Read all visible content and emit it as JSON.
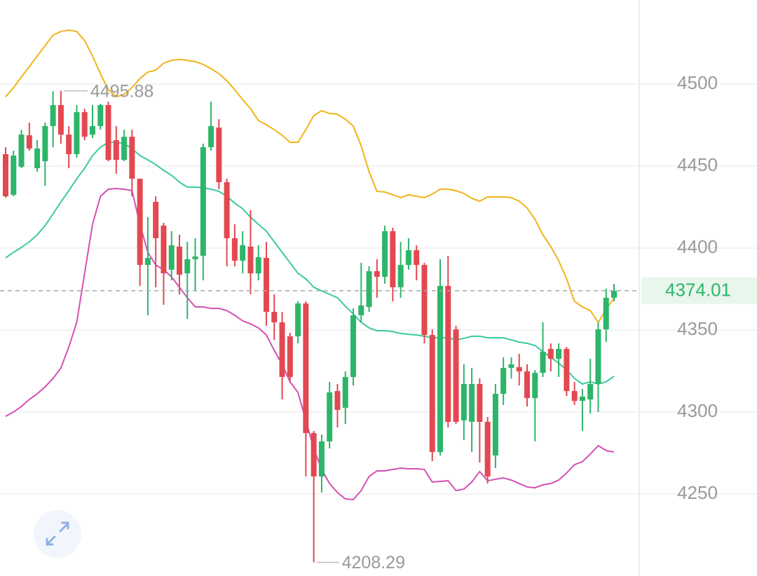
{
  "chart_data": {
    "type": "candlestick",
    "open": [
      4457.3,
      4432.5,
      4449.6,
      4468.8,
      4448.7,
      4453.0,
      4474.4,
      4487.2,
      4469.2,
      4457.3,
      4482.9,
      4469.2,
      4474.4,
      4487.2,
      4465.8,
      4453.8,
      4467.9,
      4442.3,
      4389.7,
      4428.2,
      4413.7,
      4386.8,
      4400.9,
      4384.6,
      4393.2,
      4395.3,
      4461.5,
      4473.5,
      4440.2,
      4406.0,
      4392.3,
      4400.9,
      4384.6,
      4394.0,
      4361.1,
      4354.7,
      4346.2,
      4346.2,
      4366.2,
      4287.2,
      4260.7,
      4282.1,
      4312.8,
      4302.6,
      4321.4,
      4359.0,
      4364.1,
      4385.9,
      4382.5,
      4410.3,
      4376.1,
      4389.7,
      4398.7,
      4389.7,
      4347.0,
      4275.6,
      4376.9,
      4350.4,
      4294.9,
      4294.0,
      4317.1,
      4294.0,
      4273.5,
      4311.1,
      4326.9,
      4327.4,
      4324.8,
      4308.5,
      4323.9,
      4338.5,
      4332.5,
      4338.5,
      4312.8,
      4306.8,
      4307.7,
      4317.1,
      4350.4,
      4369.7
    ],
    "high": [
      4461.5,
      4459.4,
      4472.2,
      4476.5,
      4465.8,
      4476.5,
      4495.7,
      4495.88,
      4474.4,
      4487.2,
      4485.0,
      4487.2,
      4488.0,
      4489.3,
      4474.4,
      4472.2,
      4472.2,
      4442.3,
      4418.8,
      4431.6,
      4415.4,
      4410.3,
      4408.1,
      4403.8,
      4406.0,
      4463.7,
      4489.3,
      4478.6,
      4442.3,
      4414.5,
      4410.3,
      4423.1,
      4401.7,
      4403.8,
      4371.8,
      4361.1,
      4348.3,
      4367.5,
      4367.5,
      4288.5,
      4286.3,
      4318.4,
      4317.1,
      4324.8,
      4363.2,
      4391.0,
      4388.9,
      4393.2,
      4413.7,
      4412.4,
      4403.8,
      4406.0,
      4401.7,
      4391.0,
      4350.4,
      4393.2,
      4395.3,
      4352.6,
      4329.1,
      4326.9,
      4320.5,
      4297.0,
      4317.1,
      4333.3,
      4333.3,
      4335.5,
      4329.1,
      4325.6,
      4354.7,
      4341.9,
      4341.9,
      4339.7,
      4318.4,
      4314.1,
      4332.5,
      4354.7,
      4375.2,
      4378.2
    ],
    "low": [
      4430.8,
      4431.6,
      4448.7,
      4459.4,
      4446.6,
      4438.0,
      4461.5,
      4463.7,
      4448.7,
      4455.1,
      4465.8,
      4467.1,
      4472.2,
      4453.0,
      4445.3,
      4453.0,
      4431.6,
      4376.9,
      4359.0,
      4376.1,
      4365.4,
      4380.3,
      4371.8,
      4356.8,
      4373.9,
      4380.3,
      4459.4,
      4435.9,
      4388.9,
      4388.9,
      4384.6,
      4371.8,
      4380.3,
      4352.6,
      4344.0,
      4307.7,
      4318.4,
      4341.9,
      4260.7,
      4208.29,
      4250.9,
      4277.8,
      4290.6,
      4292.7,
      4316.2,
      4354.7,
      4361.1,
      4369.7,
      4378.2,
      4367.5,
      4369.7,
      4386.8,
      4380.3,
      4341.9,
      4270.1,
      4273.5,
      4290.6,
      4292.7,
      4282.9,
      4275.6,
      4269.2,
      4256.4,
      4265.8,
      4304.3,
      4320.5,
      4316.2,
      4303.4,
      4282.1,
      4321.4,
      4324.8,
      4321.4,
      4309.8,
      4304.3,
      4288.5,
      4299.1,
      4300.0,
      4342.7,
      4367.5
    ],
    "close": [
      4431.6,
      4456.4,
      4469.2,
      4460.7,
      4460.7,
      4474.4,
      4487.2,
      4469.2,
      4457.3,
      4482.9,
      4467.9,
      4474.4,
      4487.2,
      4453.8,
      4453.8,
      4467.9,
      4442.3,
      4389.7,
      4394.0,
      4406.0,
      4384.6,
      4401.7,
      4383.8,
      4393.2,
      4394.9,
      4461.5,
      4474.4,
      4440.2,
      4406.0,
      4392.3,
      4401.7,
      4384.6,
      4394.4,
      4361.1,
      4354.7,
      4321.4,
      4321.4,
      4366.2,
      4287.2,
      4260.7,
      4282.1,
      4312.0,
      4301.3,
      4321.4,
      4359.0,
      4365.0,
      4385.9,
      4382.5,
      4410.3,
      4376.1,
      4389.7,
      4398.7,
      4389.7,
      4347.0,
      4275.6,
      4376.9,
      4294.0,
      4294.0,
      4317.1,
      4317.1,
      4294.0,
      4260.7,
      4311.1,
      4326.9,
      4329.1,
      4324.8,
      4308.5,
      4323.9,
      4336.8,
      4332.5,
      4338.5,
      4312.8,
      4306.8,
      4309.4,
      4317.1,
      4350.4,
      4369.7,
      4374.01
    ],
    "up_color": "#2db56a",
    "down_color": "#e34850",
    "bands": [
      {
        "color": "#f0b419",
        "values": [
          4492.3,
          4497.9,
          4504.3,
          4510.7,
          4517.1,
          4523.5,
          4529.9,
          4532.1,
          4532.9,
          4532.1,
          4526.5,
          4517.1,
          4506.4,
          4496.6,
          4492.3,
          4493.6,
          4497.9,
          4503.4,
          4507.3,
          4508.5,
          4512.8,
          4514.5,
          4515.0,
          4514.5,
          4513.7,
          4512.0,
          4509.4,
          4506.4,
          4502.1,
          4496.6,
          4490.6,
          4485.0,
          4477.8,
          4475.2,
          4472.2,
          4468.8,
          4464.5,
          4464.5,
          4472.2,
          4480.8,
          4483.8,
          4482.1,
          4481.6,
          4478.6,
          4474.4,
          4462.4,
          4446.6,
          4434.6,
          4434.2,
          4432.5,
          4430.8,
          4432.5,
          4431.6,
          4430.8,
          4432.9,
          4435.9,
          4435.9,
          4435.0,
          4433.3,
          4430.3,
          4428.6,
          4431.2,
          4431.2,
          4431.2,
          4430.8,
          4428.6,
          4424.4,
          4417.5,
          4408.1,
          4400.9,
          4392.3,
          4381.2,
          4367.5,
          4364.1,
          4361.9,
          4354.7,
          4362.4,
          4369.7
        ]
      },
      {
        "color": "#3cc9a0",
        "values": [
          4394.0,
          4397.4,
          4400.4,
          4403.8,
          4408.1,
          4413.7,
          4420.9,
          4428.2,
          4435.0,
          4442.3,
          4448.7,
          4456.4,
          4461.5,
          4464.5,
          4464.5,
          4463.7,
          4460.7,
          4456.4,
          4453.8,
          4450.9,
          4447.4,
          4444.4,
          4440.2,
          4437.2,
          4437.2,
          4436.8,
          4435.9,
          4434.6,
          4431.6,
          4427.4,
          4424.0,
          4418.8,
          4414.5,
          4410.3,
          4403.8,
          4397.4,
          4391.0,
          4384.6,
          4381.2,
          4376.1,
          4373.9,
          4371.8,
          4369.7,
          4364.5,
          4359.8,
          4354.7,
          4351.3,
          4349.6,
          4349.6,
          4349.1,
          4347.9,
          4347.4,
          4347.0,
          4346.2,
          4345.3,
          4345.3,
          4345.3,
          4344.0,
          4344.9,
          4346.2,
          4346.2,
          4345.3,
          4345.3,
          4345.3,
          4344.0,
          4342.7,
          4341.9,
          4340.6,
          4336.8,
          4333.3,
          4329.9,
          4325.6,
          4320.5,
          4317.1,
          4318.4,
          4317.1,
          4318.4,
          4321.8
        ]
      },
      {
        "color": "#d64fb4",
        "values": [
          4297.4,
          4300.0,
          4303.4,
          4307.7,
          4311.1,
          4315.4,
          4320.5,
          4326.9,
          4339.7,
          4354.7,
          4384.6,
          4414.5,
          4431.6,
          4435.9,
          4436.3,
          4435.9,
          4435.0,
          4414.5,
          4397.4,
          4389.7,
          4386.8,
          4382.5,
          4376.1,
          4369.7,
          4364.1,
          4364.1,
          4363.2,
          4363.2,
          4361.9,
          4359.0,
          4355.6,
          4353.8,
          4351.3,
          4347.0,
          4337.6,
          4329.1,
          4318.4,
          4312.0,
          4294.9,
          4277.8,
          4265.0,
          4256.4,
          4250.9,
          4247.0,
          4246.6,
          4252.1,
          4260.7,
          4264.1,
          4264.1,
          4265.0,
          4265.8,
          4265.4,
          4265.4,
          4265.0,
          4257.3,
          4257.7,
          4258.1,
          4252.1,
          4253.0,
          4257.3,
          4263.7,
          4258.1,
          4259.0,
          4259.8,
          4258.5,
          4256.4,
          4254.3,
          4253.8,
          4255.6,
          4256.4,
          4258.5,
          4262.8,
          4267.9,
          4269.7,
          4274.4,
          4279.5,
          4276.5,
          4275.6
        ]
      }
    ],
    "ylim": [
      4200,
      4551.3
    ],
    "yticks": [
      4250,
      4300,
      4350,
      4400,
      4450,
      4500
    ],
    "grid": true
  }
}
